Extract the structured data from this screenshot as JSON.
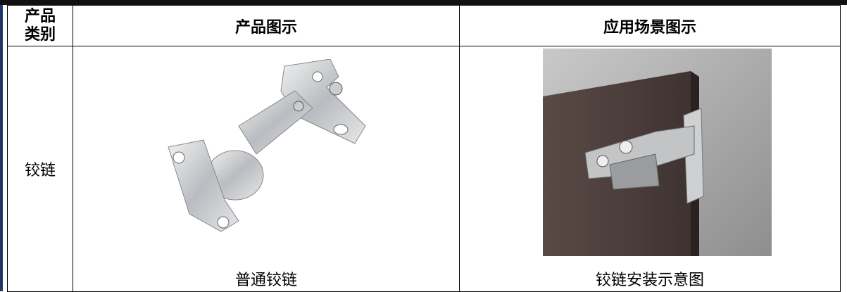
{
  "table": {
    "header": [
      "产品类别",
      "产品图示",
      "应用场景图示"
    ],
    "rows": [
      {
        "category": "铰链",
        "product_caption": "普通铰链",
        "scene_caption": "铰链安装示意图"
      }
    ]
  }
}
